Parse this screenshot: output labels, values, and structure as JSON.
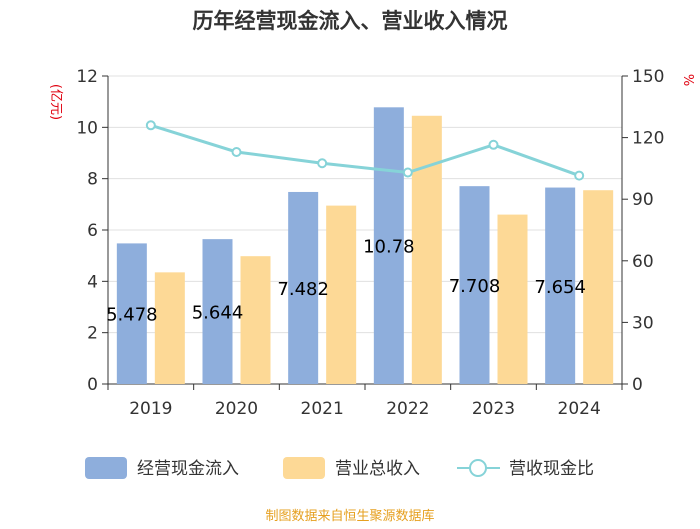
{
  "chart_data": {
    "type": "bar",
    "title": "历年经营现金流入、营业收入情况",
    "categories": [
      "2019",
      "2020",
      "2021",
      "2022",
      "2023",
      "2024"
    ],
    "series": [
      {
        "name": "经营现金流入",
        "axis": "left",
        "kind": "bar",
        "color": "#8eaedc",
        "values": [
          5.478,
          5.644,
          7.482,
          10.78,
          7.708,
          7.654
        ],
        "labels": [
          "5.478",
          "5.644",
          "7.482",
          "10.78",
          "7.708",
          "7.654"
        ]
      },
      {
        "name": "营业总收入",
        "axis": "left",
        "kind": "bar",
        "color": "#fdd996",
        "values": [
          4.35,
          4.98,
          6.95,
          10.45,
          6.6,
          7.55
        ]
      },
      {
        "name": "营收现金比",
        "axis": "right",
        "kind": "line",
        "color": "#86d3d8",
        "values": [
          126,
          113,
          107.5,
          103,
          116.5,
          101.5
        ]
      }
    ],
    "left_axis": {
      "unit": "(亿元)",
      "min": 0,
      "max": 12,
      "ticks": [
        "0",
        "2",
        "4",
        "6",
        "8",
        "10",
        "12"
      ]
    },
    "right_axis": {
      "unit": "%",
      "min": 0,
      "max": 150,
      "ticks": [
        "0",
        "30",
        "60",
        "90",
        "120",
        "150"
      ]
    },
    "grid": true,
    "legend_position": "bottom"
  },
  "footer": "制图数据来自恒生聚源数据库"
}
